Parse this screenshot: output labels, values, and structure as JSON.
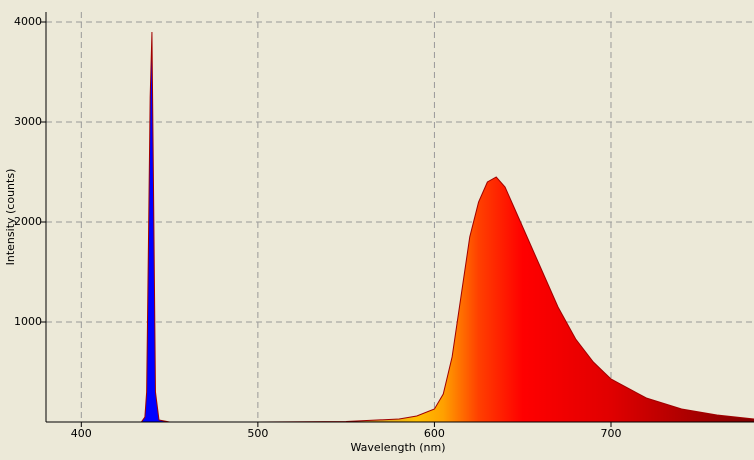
{
  "chart_data": {
    "type": "line",
    "xlabel": "Wavelength (nm)",
    "ylabel": "Intensity (counts)",
    "x": [
      430,
      434,
      436,
      437,
      438,
      439,
      440,
      441,
      442,
      444,
      450,
      500,
      550,
      580,
      590,
      600,
      605,
      610,
      615,
      620,
      625,
      630,
      635,
      640,
      645,
      650,
      660,
      670,
      680,
      690,
      700,
      720,
      740,
      760,
      781
    ],
    "series": [
      {
        "color": "#a00000",
        "values": [
          0,
          0,
          50,
          300,
          1750,
          3250,
          3900,
          2150,
          300,
          20,
          0,
          0,
          5,
          30,
          60,
          130,
          280,
          650,
          1250,
          1850,
          2200,
          2400,
          2450,
          2350,
          2150,
          1950,
          1550,
          1150,
          830,
          600,
          430,
          240,
          130,
          70,
          30
        ]
      }
    ],
    "fill_stops": [
      {
        "x": 430,
        "color": "#0000ff"
      },
      {
        "x": 450,
        "color": "#0000ff"
      },
      {
        "x": 590,
        "color": "#ffc000"
      },
      {
        "x": 605,
        "color": "#ffa000"
      },
      {
        "x": 625,
        "color": "#ff4000"
      },
      {
        "x": 650,
        "color": "#ff0000"
      },
      {
        "x": 700,
        "color": "#e00000"
      },
      {
        "x": 781,
        "color": "#800000"
      }
    ],
    "xlim": [
      380,
      781
    ],
    "xticks": [
      400,
      500,
      600,
      700
    ],
    "ylim": [
      0,
      4100
    ],
    "yticks": [
      1000,
      2000,
      3000,
      4000
    ],
    "grid": true
  }
}
